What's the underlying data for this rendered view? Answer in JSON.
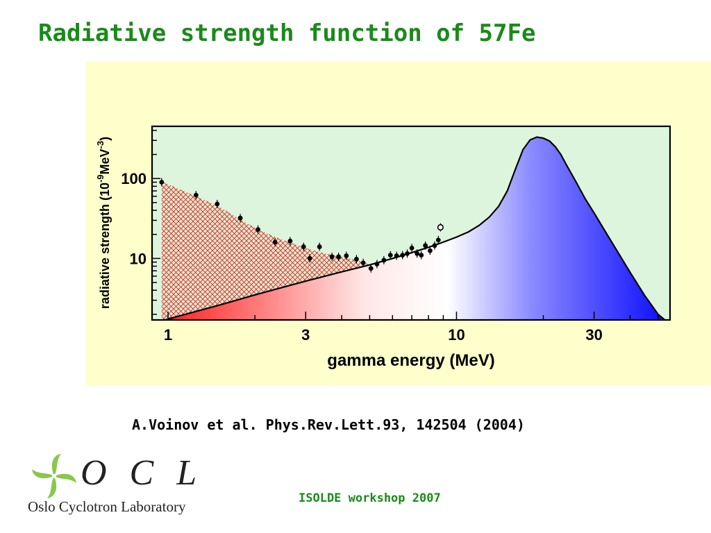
{
  "slide": {
    "title": "Radiative strength function of 57Fe",
    "citation": "A.Voinov et al. Phys.Rev.Lett.93, 142504 (2004)",
    "footer": "ISOLDE workshop 2007"
  },
  "logo": {
    "letters": "O C L",
    "subtitle": "Oslo Cyclotron Laboratory",
    "icon": "oslo-cyclotron-pinwheel-logo"
  },
  "colors": {
    "title": "#1a8a1a",
    "panel_background": "#ffffcc",
    "plot_background": "#ddf5dd",
    "hatch": "#b03020",
    "low_energy_red": "#ff3030",
    "high_energy_blue": "#1010ff"
  },
  "chart_data": {
    "type": "scatter",
    "xlabel": "gamma energy (MeV)",
    "ylabel_main": "radiative strength (10",
    "ylabel_exp": "-9",
    "ylabel_unit": "MeV",
    "ylabel_exp2": "-3",
    "ylabel_close": ")",
    "x_scale": "log",
    "y_scale": "log",
    "xlim": [
      0.88,
      55
    ],
    "ylim": [
      1.7,
      450
    ],
    "x_ticks": [
      1,
      3,
      10,
      30
    ],
    "x_tick_labels": [
      "1",
      "3",
      "10",
      "30"
    ],
    "y_ticks": [
      10,
      100
    ],
    "y_tick_labels": [
      "10",
      "100"
    ],
    "grid": false,
    "series": [
      {
        "kind": "points",
        "marker": "filled-circle",
        "points": [
          [
            0.95,
            90
          ],
          [
            1.25,
            62
          ],
          [
            1.48,
            48
          ],
          [
            1.78,
            32
          ],
          [
            2.05,
            23
          ],
          [
            2.35,
            16
          ],
          [
            2.65,
            16.5
          ],
          [
            2.95,
            14
          ],
          [
            3.1,
            10
          ],
          [
            3.35,
            14
          ],
          [
            3.7,
            10.5
          ],
          [
            3.9,
            10.5
          ],
          [
            4.15,
            10.8
          ],
          [
            4.5,
            9.8
          ],
          [
            4.75,
            8.8
          ],
          [
            5.05,
            7.5
          ],
          [
            5.3,
            8.5
          ],
          [
            5.6,
            9.5
          ],
          [
            5.9,
            11
          ],
          [
            6.2,
            10.8
          ],
          [
            6.5,
            11
          ],
          [
            6.75,
            11.5
          ],
          [
            7.0,
            13.5
          ],
          [
            7.3,
            11.5
          ],
          [
            7.55,
            11
          ],
          [
            7.8,
            14.5
          ],
          [
            8.1,
            12.5
          ],
          [
            8.4,
            14.5
          ],
          [
            8.65,
            17
          ]
        ]
      },
      {
        "kind": "points",
        "marker": "open-circle",
        "points": [
          [
            8.8,
            24.5
          ]
        ]
      },
      {
        "kind": "curve",
        "fill": "gradient-red-white-blue",
        "points": [
          [
            0.88,
            1.5
          ],
          [
            1.0,
            1.75
          ],
          [
            1.5,
            2.6
          ],
          [
            2.0,
            3.5
          ],
          [
            3.0,
            5.2
          ],
          [
            4.0,
            6.8
          ],
          [
            5.0,
            8.3
          ],
          [
            6.0,
            10
          ],
          [
            7.0,
            11.8
          ],
          [
            8.0,
            13.8
          ],
          [
            9.0,
            16
          ],
          [
            10.0,
            18.5
          ],
          [
            11.0,
            21.5
          ],
          [
            12.0,
            26
          ],
          [
            13.0,
            33
          ],
          [
            14.0,
            45
          ],
          [
            15.0,
            70
          ],
          [
            16.0,
            130
          ],
          [
            17.0,
            230
          ],
          [
            18.0,
            305
          ],
          [
            19.0,
            330
          ],
          [
            20.0,
            320
          ],
          [
            21.0,
            295
          ],
          [
            22.0,
            250
          ],
          [
            23.0,
            200
          ],
          [
            24.0,
            150
          ],
          [
            26.0,
            90
          ],
          [
            28.0,
            55
          ],
          [
            30.0,
            37
          ],
          [
            33.0,
            21
          ],
          [
            36.0,
            12.5
          ],
          [
            40.0,
            6.7
          ],
          [
            45.0,
            3.4
          ],
          [
            50.0,
            2.0
          ],
          [
            55.0,
            1.5
          ]
        ]
      },
      {
        "kind": "hatched-area",
        "fill": "crosshatch",
        "upper_points": [
          [
            0.95,
            92
          ],
          [
            1.25,
            60
          ],
          [
            1.5,
            45
          ],
          [
            1.8,
            30
          ],
          [
            2.1,
            22
          ],
          [
            2.5,
            17
          ],
          [
            3.0,
            13.5
          ],
          [
            3.5,
            11.5
          ],
          [
            4.0,
            10.5
          ],
          [
            4.5,
            9.5
          ],
          [
            5.0,
            8.4
          ]
        ]
      }
    ]
  }
}
